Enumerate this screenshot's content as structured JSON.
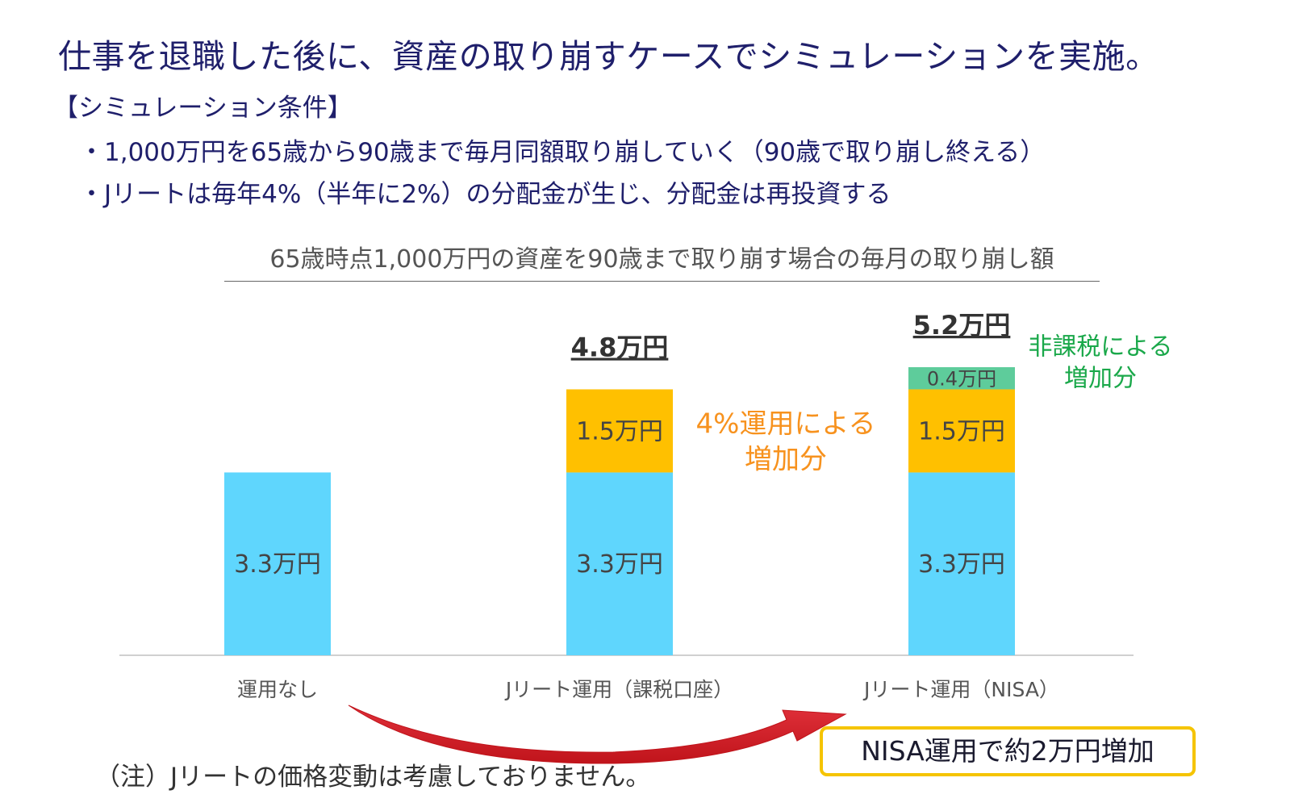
{
  "header": {
    "headline": "仕事を退職した後に、資産の取り崩すケースでシミュレーションを実施。",
    "conditions_title": "【シミュレーション条件】",
    "conditions": [
      "・1,000万円を65歳から90歳まで毎月同額取り崩していく（90歳で取り崩し終える）",
      "・Jリートは毎年4%（半年に2%）の分配金が生じ、分配金は再投資する"
    ]
  },
  "chart_data": {
    "type": "bar",
    "stacked": true,
    "title": "65歳時点1,000万円の資産を90歳まで取り崩す場合の毎月の取り崩し額",
    "categories": [
      "運用なし",
      "Jリート運用（課税口座）",
      "Jリート運用（NISA）"
    ],
    "unit": "万円",
    "series": [
      {
        "values": [
          3.3,
          3.3,
          3.3
        ],
        "labels": [
          "3.3万円",
          "3.3万円",
          "3.3万円"
        ],
        "color": "#5fd6fd"
      },
      {
        "values": [
          0,
          1.5,
          1.5
        ],
        "labels": [
          "",
          "1.5万円",
          "1.5万円"
        ],
        "color": "#ffc000"
      },
      {
        "values": [
          0,
          0,
          0.4
        ],
        "labels": [
          "",
          "",
          "0.4万円"
        ],
        "color": "#5ecc9b"
      }
    ],
    "totals": [
      "",
      "4.8万円",
      "5.2万円"
    ],
    "ylim": [
      0,
      5.2
    ],
    "annotations": [
      {
        "text": [
          "4%運用による",
          "増加分"
        ],
        "color": "#f7921e"
      },
      {
        "text": [
          "非課税による",
          "増加分"
        ],
        "color": "#1aa84a"
      }
    ],
    "grid": false
  },
  "footer": {
    "note": "（注）Jリートの価格変動は考慮しておりません。",
    "callout": "NISA運用で約2万円増加",
    "arrow_color": "#c0141b"
  }
}
